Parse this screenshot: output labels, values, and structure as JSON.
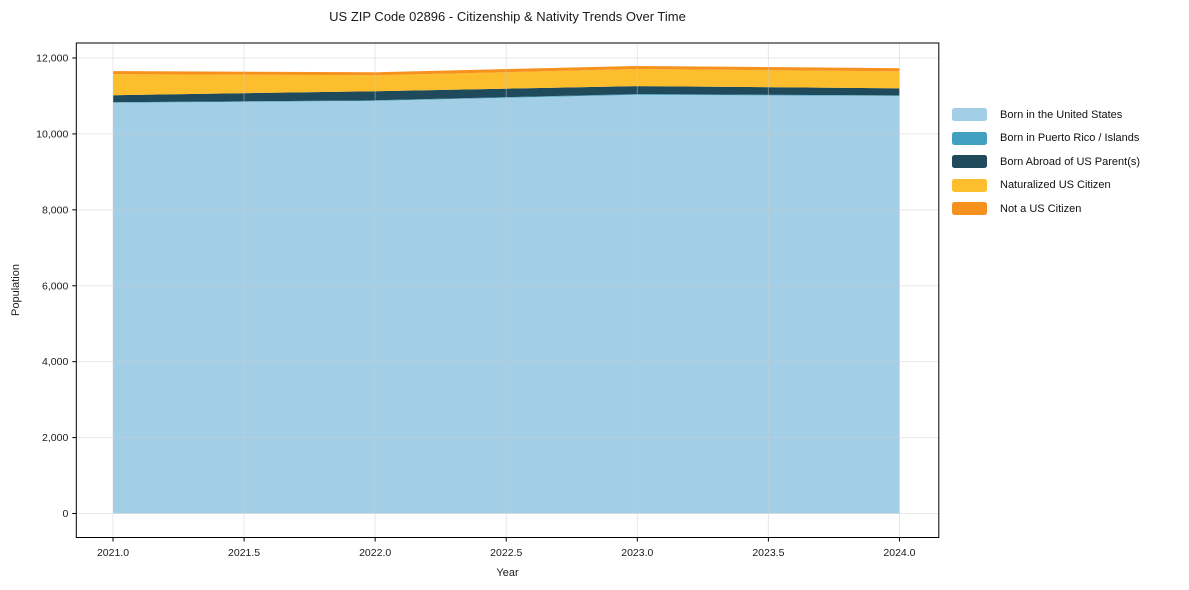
{
  "chart_data": {
    "type": "area",
    "stacked": true,
    "title": "US ZIP Code 02896 - Citizenship & Nativity Trends Over Time",
    "xlabel": "Year",
    "ylabel": "Population",
    "x": [
      2021,
      2022,
      2023,
      2024
    ],
    "series": [
      {
        "name": "Born in the United States",
        "color": "#a3cfe6",
        "values": [
          10820,
          10870,
          11030,
          11000
        ]
      },
      {
        "name": "Born in Puerto Rico / Islands",
        "color": "#41a0c0",
        "values": [
          15,
          15,
          20,
          15
        ]
      },
      {
        "name": "Born Abroad of US Parent(s)",
        "color": "#1f4a5c",
        "values": [
          185,
          240,
          210,
          185
        ]
      },
      {
        "name": "Naturalized US Citizen",
        "color": "#fcbe2c",
        "values": [
          555,
          420,
          450,
          450
        ]
      },
      {
        "name": "Not a US Citizen",
        "color": "#f6911e",
        "values": [
          80,
          80,
          80,
          80
        ]
      }
    ],
    "x_tick_values": [
      2021.0,
      2021.5,
      2022.0,
      2022.5,
      2023.0,
      2023.5,
      2024.0
    ],
    "x_tick_labels": [
      "2021.0",
      "2021.5",
      "2022.0",
      "2022.5",
      "2023.0",
      "2023.5",
      "2024.0"
    ],
    "y_tick_values": [
      0,
      2000,
      4000,
      6000,
      8000,
      10000,
      12000
    ],
    "y_tick_labels": [
      "0",
      "2,000",
      "4,000",
      "6,000",
      "8,000",
      "10,000",
      "12,000"
    ],
    "xlim": [
      2020.86,
      2024.15
    ],
    "ylim": [
      -632,
      12395
    ],
    "grid": true,
    "grid_color": "#cccccc",
    "spine_color": "#000000",
    "legend_position": "right-outside"
  }
}
